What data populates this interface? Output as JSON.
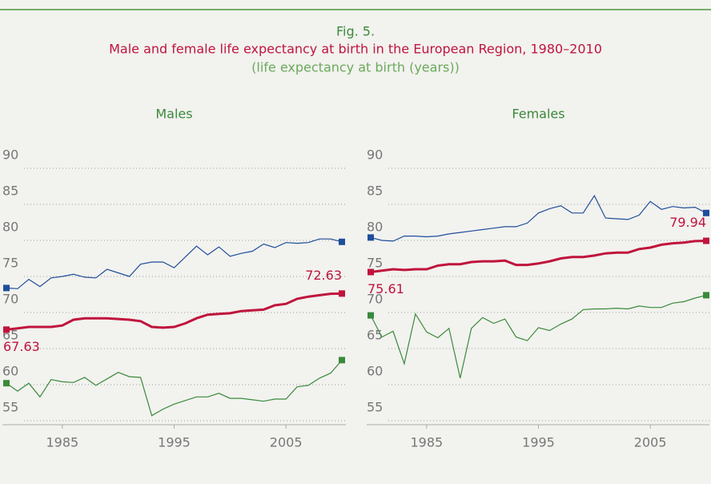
{
  "header": {
    "fig": "Fig. 5.",
    "title": "Male and female life expectancy at birth in the European Region, 1980–2010",
    "subtitle": "(life expectancy at birth (years))"
  },
  "chart_data": [
    {
      "type": "line",
      "title": "Males",
      "x": [
        1980,
        1981,
        1982,
        1983,
        1984,
        1985,
        1986,
        1987,
        1988,
        1989,
        1990,
        1991,
        1992,
        1993,
        1994,
        1995,
        1996,
        1997,
        1998,
        1999,
        2000,
        2001,
        2002,
        2003,
        2004,
        2005,
        2006,
        2007,
        2008,
        2009,
        2010
      ],
      "xlim": [
        1980,
        2010
      ],
      "xticks": [
        1985,
        1995,
        2005
      ],
      "ylim": [
        55,
        90
      ],
      "yticks": [
        55,
        60,
        65,
        70,
        75,
        80,
        85,
        90
      ],
      "grid": true,
      "series": [
        {
          "color": "#1f4e9a",
          "values": [
            73.4,
            73.3,
            74.6,
            73.6,
            74.8,
            75.0,
            75.3,
            74.9,
            74.8,
            76.0,
            75.5,
            75.0,
            76.7,
            77.0,
            77.0,
            76.2,
            77.7,
            79.2,
            78.0,
            79.1,
            77.8,
            78.2,
            78.5,
            79.5,
            79.0,
            79.7,
            79.6,
            79.7,
            80.2,
            80.2,
            79.8
          ]
        },
        {
          "color": "#c0143c",
          "values": [
            67.63,
            67.8,
            68.0,
            68.0,
            68.0,
            68.2,
            69.0,
            69.2,
            69.2,
            69.2,
            69.1,
            69.0,
            68.8,
            68.0,
            67.9,
            68.0,
            68.5,
            69.2,
            69.7,
            69.8,
            69.9,
            70.2,
            70.3,
            70.4,
            71.0,
            71.2,
            71.9,
            72.2,
            72.4,
            72.6,
            72.63
          ]
        },
        {
          "color": "#3a8a3a",
          "values": [
            60.2,
            59.1,
            60.2,
            58.3,
            60.7,
            60.4,
            60.3,
            61.0,
            59.9,
            60.8,
            61.7,
            61.1,
            61.0,
            55.7,
            56.6,
            57.3,
            57.8,
            58.3,
            58.3,
            58.8,
            58.1,
            58.1,
            57.9,
            57.7,
            58.0,
            58.0,
            59.7,
            59.9,
            60.9,
            61.6,
            63.4
          ]
        }
      ]
    },
    {
      "type": "line",
      "title": "Females",
      "x": [
        1980,
        1981,
        1982,
        1983,
        1984,
        1985,
        1986,
        1987,
        1988,
        1989,
        1990,
        1991,
        1992,
        1993,
        1994,
        1995,
        1996,
        1997,
        1998,
        1999,
        2000,
        2001,
        2002,
        2003,
        2004,
        2005,
        2006,
        2007,
        2008,
        2009,
        2010
      ],
      "xlim": [
        1980,
        2010
      ],
      "xticks": [
        1985,
        1995,
        2005
      ],
      "ylim": [
        55,
        90
      ],
      "yticks": [
        55,
        60,
        65,
        70,
        75,
        80,
        85,
        90
      ],
      "grid": true,
      "series": [
        {
          "color": "#1f4e9a",
          "values": [
            80.4,
            80.0,
            79.9,
            80.6,
            80.6,
            80.5,
            80.6,
            80.9,
            81.1,
            81.3,
            81.5,
            81.7,
            81.9,
            81.9,
            82.4,
            83.8,
            84.4,
            84.8,
            83.8,
            83.8,
            86.2,
            83.1,
            83.0,
            82.9,
            83.5,
            85.4,
            84.3,
            84.7,
            84.5,
            84.6,
            83.8
          ]
        },
        {
          "color": "#c0143c",
          "values": [
            75.61,
            75.8,
            76.0,
            75.9,
            76.0,
            76.0,
            76.5,
            76.7,
            76.7,
            77.0,
            77.1,
            77.1,
            77.2,
            76.6,
            76.6,
            76.8,
            77.1,
            77.5,
            77.7,
            77.7,
            77.9,
            78.2,
            78.3,
            78.3,
            78.8,
            79.0,
            79.4,
            79.6,
            79.7,
            79.9,
            79.94
          ]
        },
        {
          "color": "#3a8a3a",
          "values": [
            69.6,
            66.6,
            67.4,
            62.9,
            69.8,
            67.3,
            66.5,
            67.8,
            60.9,
            67.8,
            69.3,
            68.5,
            69.1,
            66.6,
            66.1,
            67.9,
            67.5,
            68.4,
            69.1,
            70.4,
            70.5,
            70.5,
            70.6,
            70.5,
            70.9,
            70.7,
            70.7,
            71.3,
            71.5,
            72.0,
            72.4
          ]
        }
      ]
    }
  ]
}
